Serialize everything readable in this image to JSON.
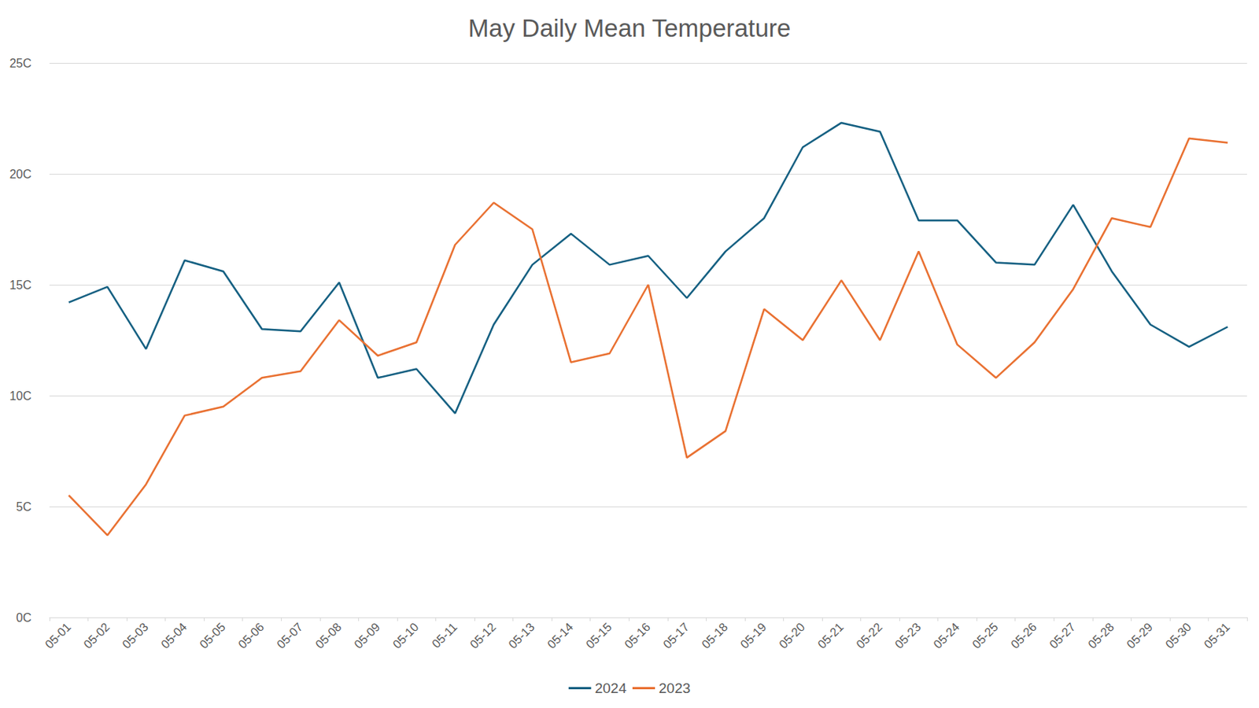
{
  "chart_data": {
    "type": "line",
    "title": "May Daily Mean Temperature",
    "categories": [
      "05-01",
      "05-02",
      "05-03",
      "05-04",
      "05-05",
      "05-06",
      "05-07",
      "05-08",
      "05-09",
      "05-10",
      "05-11",
      "05-12",
      "05-13",
      "05-14",
      "05-15",
      "05-16",
      "05-17",
      "05-18",
      "05-19",
      "05-20",
      "05-21",
      "05-22",
      "05-23",
      "05-24",
      "05-25",
      "05-26",
      "05-27",
      "05-28",
      "05-29",
      "05-30",
      "05-31"
    ],
    "series": [
      {
        "name": "2024",
        "color": "#156082",
        "values": [
          14.2,
          14.9,
          12.1,
          16.1,
          15.6,
          13.0,
          12.9,
          15.1,
          10.8,
          11.2,
          9.2,
          13.2,
          15.9,
          17.3,
          15.9,
          16.3,
          14.4,
          16.5,
          18.0,
          21.2,
          22.3,
          21.9,
          17.9,
          17.9,
          16.0,
          15.9,
          18.6,
          15.6,
          13.2,
          12.2,
          13.1
        ]
      },
      {
        "name": "2023",
        "color": "#e97132",
        "values": [
          5.5,
          3.7,
          6.0,
          9.1,
          9.5,
          10.8,
          11.1,
          13.4,
          11.8,
          12.4,
          16.8,
          18.7,
          17.5,
          11.5,
          11.9,
          15.0,
          7.2,
          8.4,
          13.9,
          12.5,
          15.2,
          12.5,
          16.5,
          12.3,
          10.8,
          12.4,
          14.8,
          18.0,
          17.6,
          21.6,
          21.4
        ]
      }
    ],
    "ylim": [
      0,
      25
    ],
    "yticks": [
      {
        "value": 0,
        "label": "0C"
      },
      {
        "value": 5,
        "label": "5C"
      },
      {
        "value": 10,
        "label": "10C"
      },
      {
        "value": 15,
        "label": "15C"
      },
      {
        "value": 20,
        "label": "20C"
      },
      {
        "value": 25,
        "label": "25C"
      }
    ],
    "grid": true,
    "legend": "bottom",
    "marker": "none",
    "line_style": "solid"
  }
}
